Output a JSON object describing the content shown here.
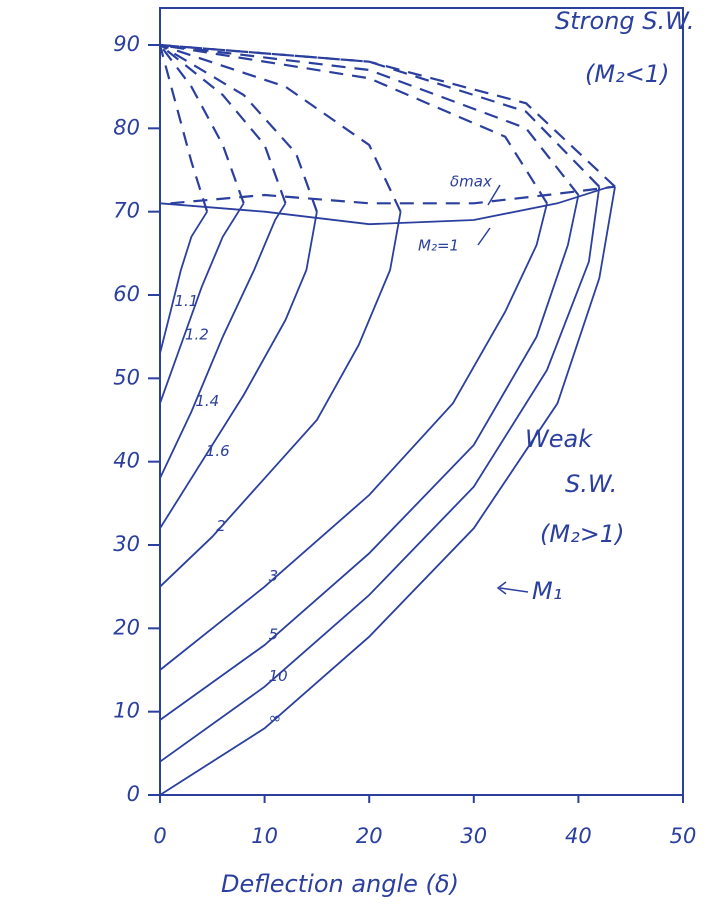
{
  "chart_data": {
    "type": "line",
    "x_label": "Deflection angle (δ)",
    "color": "#2b3f9e",
    "xlim": [
      0,
      50
    ],
    "xticks": [
      0,
      10,
      20,
      30,
      40,
      50
    ],
    "ylim": [
      0,
      90
    ],
    "yticks": [
      0,
      10,
      20,
      30,
      40,
      50,
      60,
      70,
      80,
      90
    ],
    "annotations": {
      "strong": "Strong S.W.",
      "strong_condition": "(M₂<1)",
      "weak": "Weak",
      "weak_sw": "S.W.",
      "weak_condition": "(M₂>1)",
      "delta_max": "δmax",
      "mach_arrow": "M₁"
    },
    "series": [
      {
        "name": "1.1",
        "x": [
          0,
          1,
          2,
          3,
          4.5
        ],
        "values": [
          53,
          58,
          63,
          67,
          70
        ],
        "strong_x": [
          4.5,
          3,
          1.5,
          0
        ],
        "strong_values": [
          70,
          76,
          83,
          90
        ]
      },
      {
        "name": "1.2",
        "x": [
          0,
          2,
          4,
          6,
          8
        ],
        "values": [
          47,
          54,
          61,
          67,
          71
        ],
        "strong_x": [
          8,
          6,
          3,
          0
        ],
        "strong_values": [
          71,
          78,
          85,
          90
        ]
      },
      {
        "name": "1.4",
        "x": [
          0,
          3,
          6,
          9,
          11,
          12
        ],
        "values": [
          38,
          46,
          55,
          63,
          69,
          71
        ],
        "strong_x": [
          12,
          10,
          6,
          0
        ],
        "strong_values": [
          71,
          78,
          84,
          90
        ]
      },
      {
        "name": "1.6",
        "x": [
          0,
          4,
          8,
          12,
          14,
          15
        ],
        "values": [
          32,
          40,
          48,
          57,
          63,
          70
        ],
        "strong_x": [
          15,
          13,
          8,
          0
        ],
        "strong_values": [
          70,
          77,
          84,
          90
        ]
      },
      {
        "name": "2",
        "x": [
          0,
          5,
          10,
          15,
          19,
          22,
          23
        ],
        "values": [
          25,
          31,
          38,
          45,
          54,
          63,
          70
        ],
        "strong_x": [
          23,
          20,
          12,
          0
        ],
        "strong_values": [
          70,
          78,
          85,
          90
        ]
      },
      {
        "name": "3",
        "x": [
          0,
          10,
          20,
          28,
          33,
          36,
          37
        ],
        "values": [
          15,
          25,
          36,
          47,
          58,
          66,
          71
        ],
        "strong_x": [
          37,
          33,
          20,
          0
        ],
        "strong_values": [
          71,
          79,
          86,
          90
        ]
      },
      {
        "name": "5",
        "x": [
          0,
          10,
          20,
          30,
          36,
          39,
          40
        ],
        "values": [
          9,
          18,
          29,
          42,
          55,
          66,
          72
        ],
        "strong_x": [
          40,
          35,
          20,
          0
        ],
        "strong_values": [
          72,
          80,
          87,
          90
        ]
      },
      {
        "name": "10",
        "x": [
          0,
          10,
          20,
          30,
          37,
          41,
          42
        ],
        "values": [
          4,
          13,
          24,
          37,
          51,
          64,
          73
        ],
        "strong_x": [
          42,
          35,
          20,
          0
        ],
        "strong_values": [
          73,
          82,
          88,
          90
        ]
      },
      {
        "name": "∞",
        "x": [
          0,
          10,
          20,
          30,
          38,
          42,
          43.5
        ],
        "values": [
          0,
          8,
          19,
          32,
          47,
          62,
          73
        ],
        "strong_x": [
          43.5,
          35,
          20,
          0
        ],
        "strong_values": [
          73,
          83,
          88,
          90
        ]
      }
    ],
    "sonic_line": {
      "name": "M₂=1",
      "x": [
        0,
        10,
        20,
        30,
        38,
        43
      ],
      "values": [
        71,
        70,
        68.5,
        69,
        71,
        73
      ]
    },
    "max_line": {
      "x": [
        1,
        10,
        20,
        30,
        37,
        43.5
      ],
      "values": [
        71,
        72,
        71,
        71,
        72,
        73
      ]
    }
  }
}
